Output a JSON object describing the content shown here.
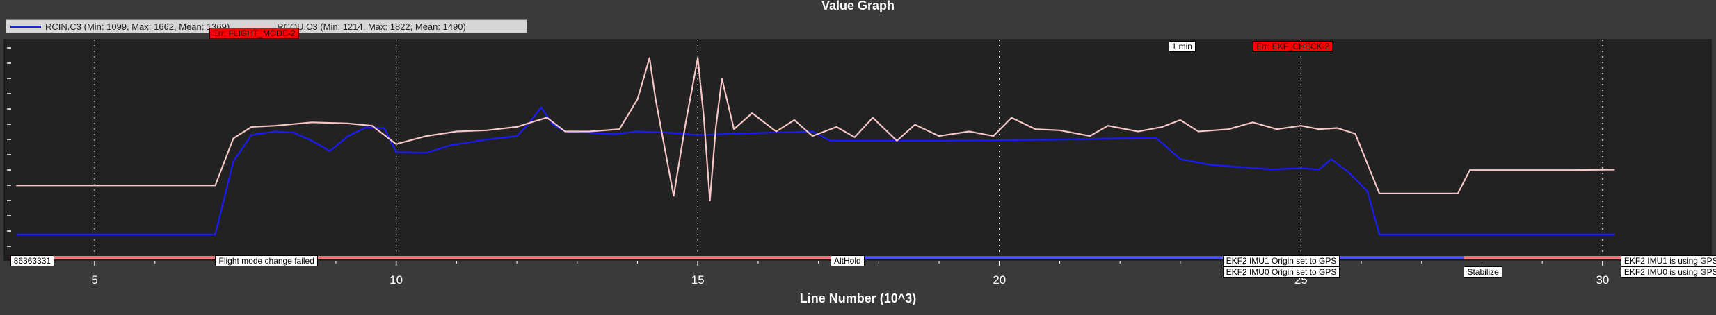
{
  "chart_data": {
    "type": "line",
    "title": "Value Graph",
    "xlabel": "Line Number (10^3)",
    "ylabel": "",
    "xlim": [
      3.5,
      31.8
    ],
    "ylim": [
      1000,
      1960
    ],
    "xticks": [
      5,
      10,
      15,
      20,
      25,
      30
    ],
    "xtick_labels": [
      "5",
      "10",
      "15",
      "20",
      "25",
      "30"
    ],
    "grid": true,
    "legend_position": "top-left",
    "series": [
      {
        "name": "RCIN.C3 (Min: 1099, Max: 1662, Mean: 1369)",
        "color": "#1a1aff",
        "points": [
          [
            3.7,
            1112
          ],
          [
            7.0,
            1112
          ],
          [
            7.3,
            1430
          ],
          [
            7.6,
            1545
          ],
          [
            8.0,
            1560
          ],
          [
            8.3,
            1555
          ],
          [
            8.6,
            1520
          ],
          [
            8.9,
            1475
          ],
          [
            9.2,
            1540
          ],
          [
            9.5,
            1578
          ],
          [
            9.8,
            1575
          ],
          [
            10.0,
            1470
          ],
          [
            10.5,
            1468
          ],
          [
            10.9,
            1500
          ],
          [
            11.5,
            1525
          ],
          [
            12.0,
            1540
          ],
          [
            12.2,
            1595
          ],
          [
            12.4,
            1665
          ],
          [
            12.6,
            1590
          ],
          [
            12.8,
            1560
          ],
          [
            13.2,
            1555
          ],
          [
            13.6,
            1548
          ],
          [
            14.0,
            1560
          ],
          [
            14.5,
            1555
          ],
          [
            15.0,
            1545
          ],
          [
            15.6,
            1550
          ],
          [
            16.2,
            1555
          ],
          [
            16.9,
            1560
          ],
          [
            17.2,
            1520
          ],
          [
            18.0,
            1520
          ],
          [
            19.0,
            1520
          ],
          [
            20.0,
            1522
          ],
          [
            21.0,
            1525
          ],
          [
            22.0,
            1530
          ],
          [
            22.6,
            1532
          ],
          [
            23.0,
            1440
          ],
          [
            23.5,
            1415
          ],
          [
            24.5,
            1395
          ],
          [
            25.0,
            1400
          ],
          [
            25.3,
            1395
          ],
          [
            25.5,
            1440
          ],
          [
            25.8,
            1380
          ],
          [
            26.1,
            1300
          ],
          [
            26.3,
            1112
          ],
          [
            27.5,
            1112
          ],
          [
            28.5,
            1112
          ],
          [
            29.5,
            1112
          ],
          [
            30.2,
            1112
          ]
        ]
      },
      {
        "name": "RCOU.C3 (Min: 1214, Max: 1822, Mean: 1490)",
        "color": "#f7c6c6",
        "points": [
          [
            3.7,
            1325
          ],
          [
            7.0,
            1325
          ],
          [
            7.3,
            1530
          ],
          [
            7.6,
            1580
          ],
          [
            8.0,
            1585
          ],
          [
            8.6,
            1600
          ],
          [
            9.2,
            1595
          ],
          [
            9.6,
            1585
          ],
          [
            10.0,
            1505
          ],
          [
            10.5,
            1540
          ],
          [
            11.0,
            1560
          ],
          [
            11.5,
            1565
          ],
          [
            12.0,
            1580
          ],
          [
            12.3,
            1605
          ],
          [
            12.5,
            1620
          ],
          [
            12.8,
            1560
          ],
          [
            13.2,
            1560
          ],
          [
            13.7,
            1570
          ],
          [
            14.0,
            1700
          ],
          [
            14.2,
            1880
          ],
          [
            14.3,
            1700
          ],
          [
            14.6,
            1280
          ],
          [
            14.8,
            1600
          ],
          [
            15.0,
            1880
          ],
          [
            15.1,
            1620
          ],
          [
            15.2,
            1260
          ],
          [
            15.3,
            1580
          ],
          [
            15.4,
            1790
          ],
          [
            15.6,
            1570
          ],
          [
            15.9,
            1640
          ],
          [
            16.3,
            1560
          ],
          [
            16.6,
            1610
          ],
          [
            16.9,
            1540
          ],
          [
            17.3,
            1580
          ],
          [
            17.6,
            1535
          ],
          [
            17.9,
            1620
          ],
          [
            18.3,
            1520
          ],
          [
            18.6,
            1590
          ],
          [
            19.0,
            1540
          ],
          [
            19.5,
            1560
          ],
          [
            19.9,
            1540
          ],
          [
            20.2,
            1620
          ],
          [
            20.6,
            1570
          ],
          [
            21.0,
            1565
          ],
          [
            21.5,
            1540
          ],
          [
            21.8,
            1585
          ],
          [
            22.3,
            1560
          ],
          [
            22.7,
            1580
          ],
          [
            23.0,
            1610
          ],
          [
            23.3,
            1560
          ],
          [
            23.8,
            1570
          ],
          [
            24.2,
            1600
          ],
          [
            24.6,
            1570
          ],
          [
            25.0,
            1585
          ],
          [
            25.3,
            1570
          ],
          [
            25.6,
            1575
          ],
          [
            25.9,
            1550
          ],
          [
            26.1,
            1420
          ],
          [
            26.3,
            1290
          ],
          [
            26.6,
            1290
          ],
          [
            27.6,
            1290
          ],
          [
            27.8,
            1392
          ],
          [
            28.6,
            1392
          ],
          [
            29.5,
            1392
          ],
          [
            30.2,
            1394
          ]
        ]
      }
    ],
    "annotations": [
      {
        "text": "Err: FLIGHT_MODE-2",
        "x": 6.9,
        "kind": "error",
        "row": "top"
      },
      {
        "text": "1 min",
        "x": 22.8,
        "kind": "info",
        "row": "top"
      },
      {
        "text": "Err: EKF_CHECK-2",
        "x": 24.2,
        "kind": "error",
        "row": "top"
      },
      {
        "text": "86363331",
        "x": 3.6,
        "kind": "mode",
        "row": "bottom"
      },
      {
        "text": "Flight mode change failed",
        "x": 7.0,
        "kind": "mode",
        "row": "bottom"
      },
      {
        "text": "AltHold",
        "x": 17.2,
        "kind": "mode",
        "row": "bottom"
      },
      {
        "text": "EKF2 IMU1 Origin set to GPS",
        "x": 23.7,
        "kind": "mode",
        "row": "bottom"
      },
      {
        "text": "EKF2 IMU0 Origin set to GPS",
        "x": 23.7,
        "kind": "mode",
        "row": "bottom2"
      },
      {
        "text": "Stabilize",
        "x": 27.7,
        "kind": "mode",
        "row": "bottom2"
      },
      {
        "text": "EKF2 IMU1 is using GPS",
        "x": 30.3,
        "kind": "mode",
        "row": "bottom"
      },
      {
        "text": "EKF2 IMU0 is using GPS",
        "x": 30.3,
        "kind": "mode",
        "row": "bottom2"
      }
    ],
    "mode_bands": [
      {
        "from": 3.6,
        "to": 17.2,
        "color": "#e87b7b"
      },
      {
        "from": 17.2,
        "to": 27.7,
        "color": "#5050ff"
      },
      {
        "from": 27.7,
        "to": 31.8,
        "color": "#e87b7b"
      }
    ]
  }
}
